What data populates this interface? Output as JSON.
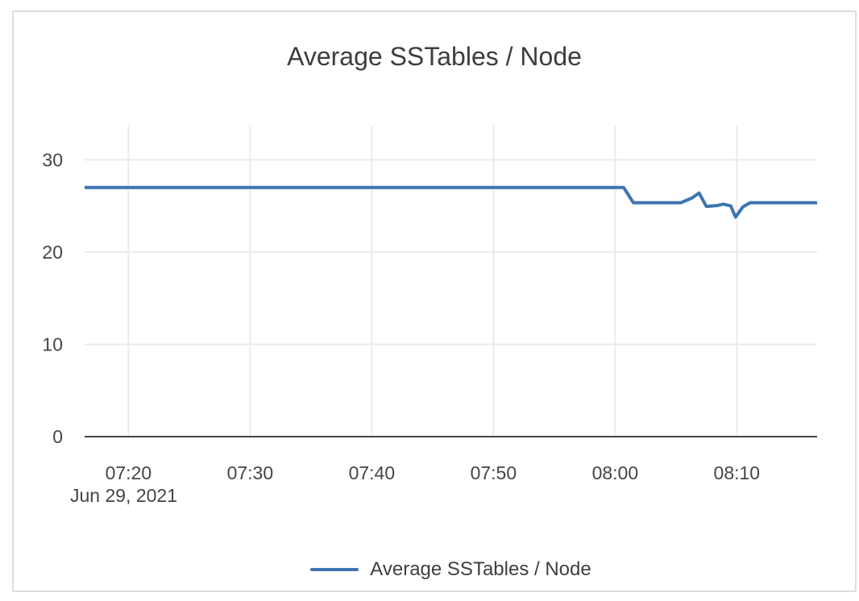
{
  "chart_data": {
    "type": "line",
    "title": "Average SSTables / Node",
    "xlabel": "",
    "ylabel": "",
    "x_axis_date": "Jun 29, 2021",
    "x_unit": "minutes after 07:00 on Jun 29, 2021",
    "x_domain_minutes": [
      16.4,
      76.6
    ],
    "ylim": [
      0,
      33.7
    ],
    "grid": true,
    "x_ticks": [
      {
        "t": 20,
        "label": "07:20"
      },
      {
        "t": 30,
        "label": "07:30"
      },
      {
        "t": 40,
        "label": "07:40"
      },
      {
        "t": 50,
        "label": "07:50"
      },
      {
        "t": 60,
        "label": "08:00"
      },
      {
        "t": 70,
        "label": "08:10"
      }
    ],
    "y_ticks": [
      {
        "v": 0,
        "label": "0"
      },
      {
        "v": 10,
        "label": "10"
      },
      {
        "v": 20,
        "label": "20"
      },
      {
        "v": 30,
        "label": "30"
      }
    ],
    "series": [
      {
        "name": "Average SSTables / Node",
        "color": "#3e75b0",
        "points": [
          [
            16.4,
            27.0
          ],
          [
            60.7,
            27.0
          ],
          [
            61.5,
            25.35
          ],
          [
            65.4,
            25.35
          ],
          [
            66.3,
            25.85
          ],
          [
            66.9,
            26.4
          ],
          [
            67.5,
            24.95
          ],
          [
            68.4,
            25.05
          ],
          [
            68.9,
            25.2
          ],
          [
            69.5,
            25.0
          ],
          [
            69.9,
            23.8
          ],
          [
            70.5,
            24.9
          ],
          [
            71.1,
            25.35
          ],
          [
            76.6,
            25.35
          ]
        ]
      }
    ],
    "legend": {
      "position": "bottom",
      "items": [
        "Average SSTables / Node"
      ]
    },
    "colors": {
      "line": "#3e75b0",
      "grid": "#ebebeb",
      "axis": "#454545",
      "tick_text": "#454545",
      "title_text": "#3d3d3d",
      "card_border": "#dcdcdc",
      "background": "#ffffff"
    }
  }
}
